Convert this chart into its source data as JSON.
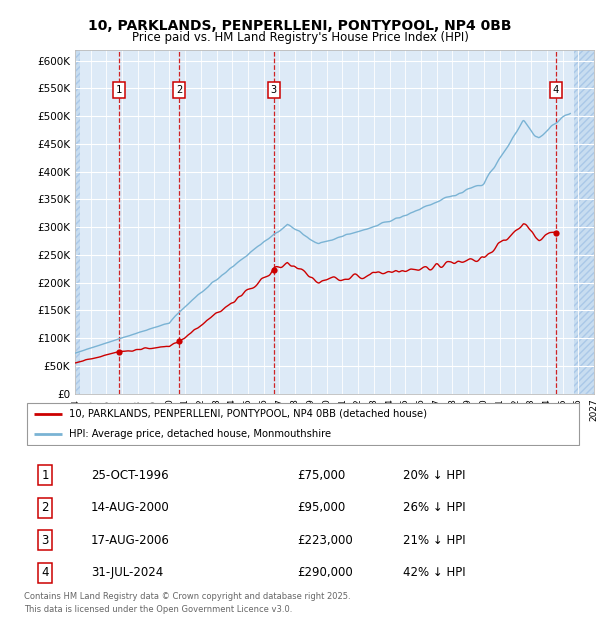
{
  "title": "10, PARKLANDS, PENPERLLENI, PONTYPOOL, NP4 0BB",
  "subtitle": "Price paid vs. HM Land Registry's House Price Index (HPI)",
  "xlim_start": 1994.0,
  "xlim_end": 2027.0,
  "ylim_min": 0,
  "ylim_max": 620000,
  "yticks": [
    0,
    50000,
    100000,
    150000,
    200000,
    250000,
    300000,
    350000,
    400000,
    450000,
    500000,
    550000,
    600000
  ],
  "ytick_labels": [
    "£0",
    "£50K",
    "£100K",
    "£150K",
    "£200K",
    "£250K",
    "£300K",
    "£350K",
    "£400K",
    "£450K",
    "£500K",
    "£550K",
    "£600K"
  ],
  "xtick_years": [
    1994,
    1995,
    1996,
    1997,
    1998,
    1999,
    2000,
    2001,
    2002,
    2003,
    2004,
    2005,
    2006,
    2007,
    2008,
    2009,
    2010,
    2011,
    2012,
    2013,
    2014,
    2015,
    2016,
    2017,
    2018,
    2019,
    2020,
    2021,
    2022,
    2023,
    2024,
    2025,
    2026,
    2027
  ],
  "hpi_color": "#7ab3d4",
  "price_color": "#cc0000",
  "sale_dates_num": [
    1996.81,
    2000.62,
    2006.63,
    2024.58
  ],
  "sale_prices": [
    75000,
    95000,
    223000,
    290000
  ],
  "sale_labels": [
    "1",
    "2",
    "3",
    "4"
  ],
  "annotation_rows": [
    {
      "num": "1",
      "date": "25-OCT-1996",
      "price": "£75,000",
      "hpi": "20% ↓ HPI"
    },
    {
      "num": "2",
      "date": "14-AUG-2000",
      "price": "£95,000",
      "hpi": "26% ↓ HPI"
    },
    {
      "num": "3",
      "date": "17-AUG-2006",
      "price": "£223,000",
      "hpi": "21% ↓ HPI"
    },
    {
      "num": "4",
      "date": "31-JUL-2024",
      "price": "£290,000",
      "hpi": "42% ↓ HPI"
    }
  ],
  "legend_line1": "10, PARKLANDS, PENPERLLENI, PONTYPOOL, NP4 0BB (detached house)",
  "legend_line2": "HPI: Average price, detached house, Monmouthshire",
  "footer": "Contains HM Land Registry data © Crown copyright and database right 2025.\nThis data is licensed under the Open Government Licence v3.0.",
  "bg_plot": "#ddeaf7",
  "bg_hatch": "#c8ddf0"
}
